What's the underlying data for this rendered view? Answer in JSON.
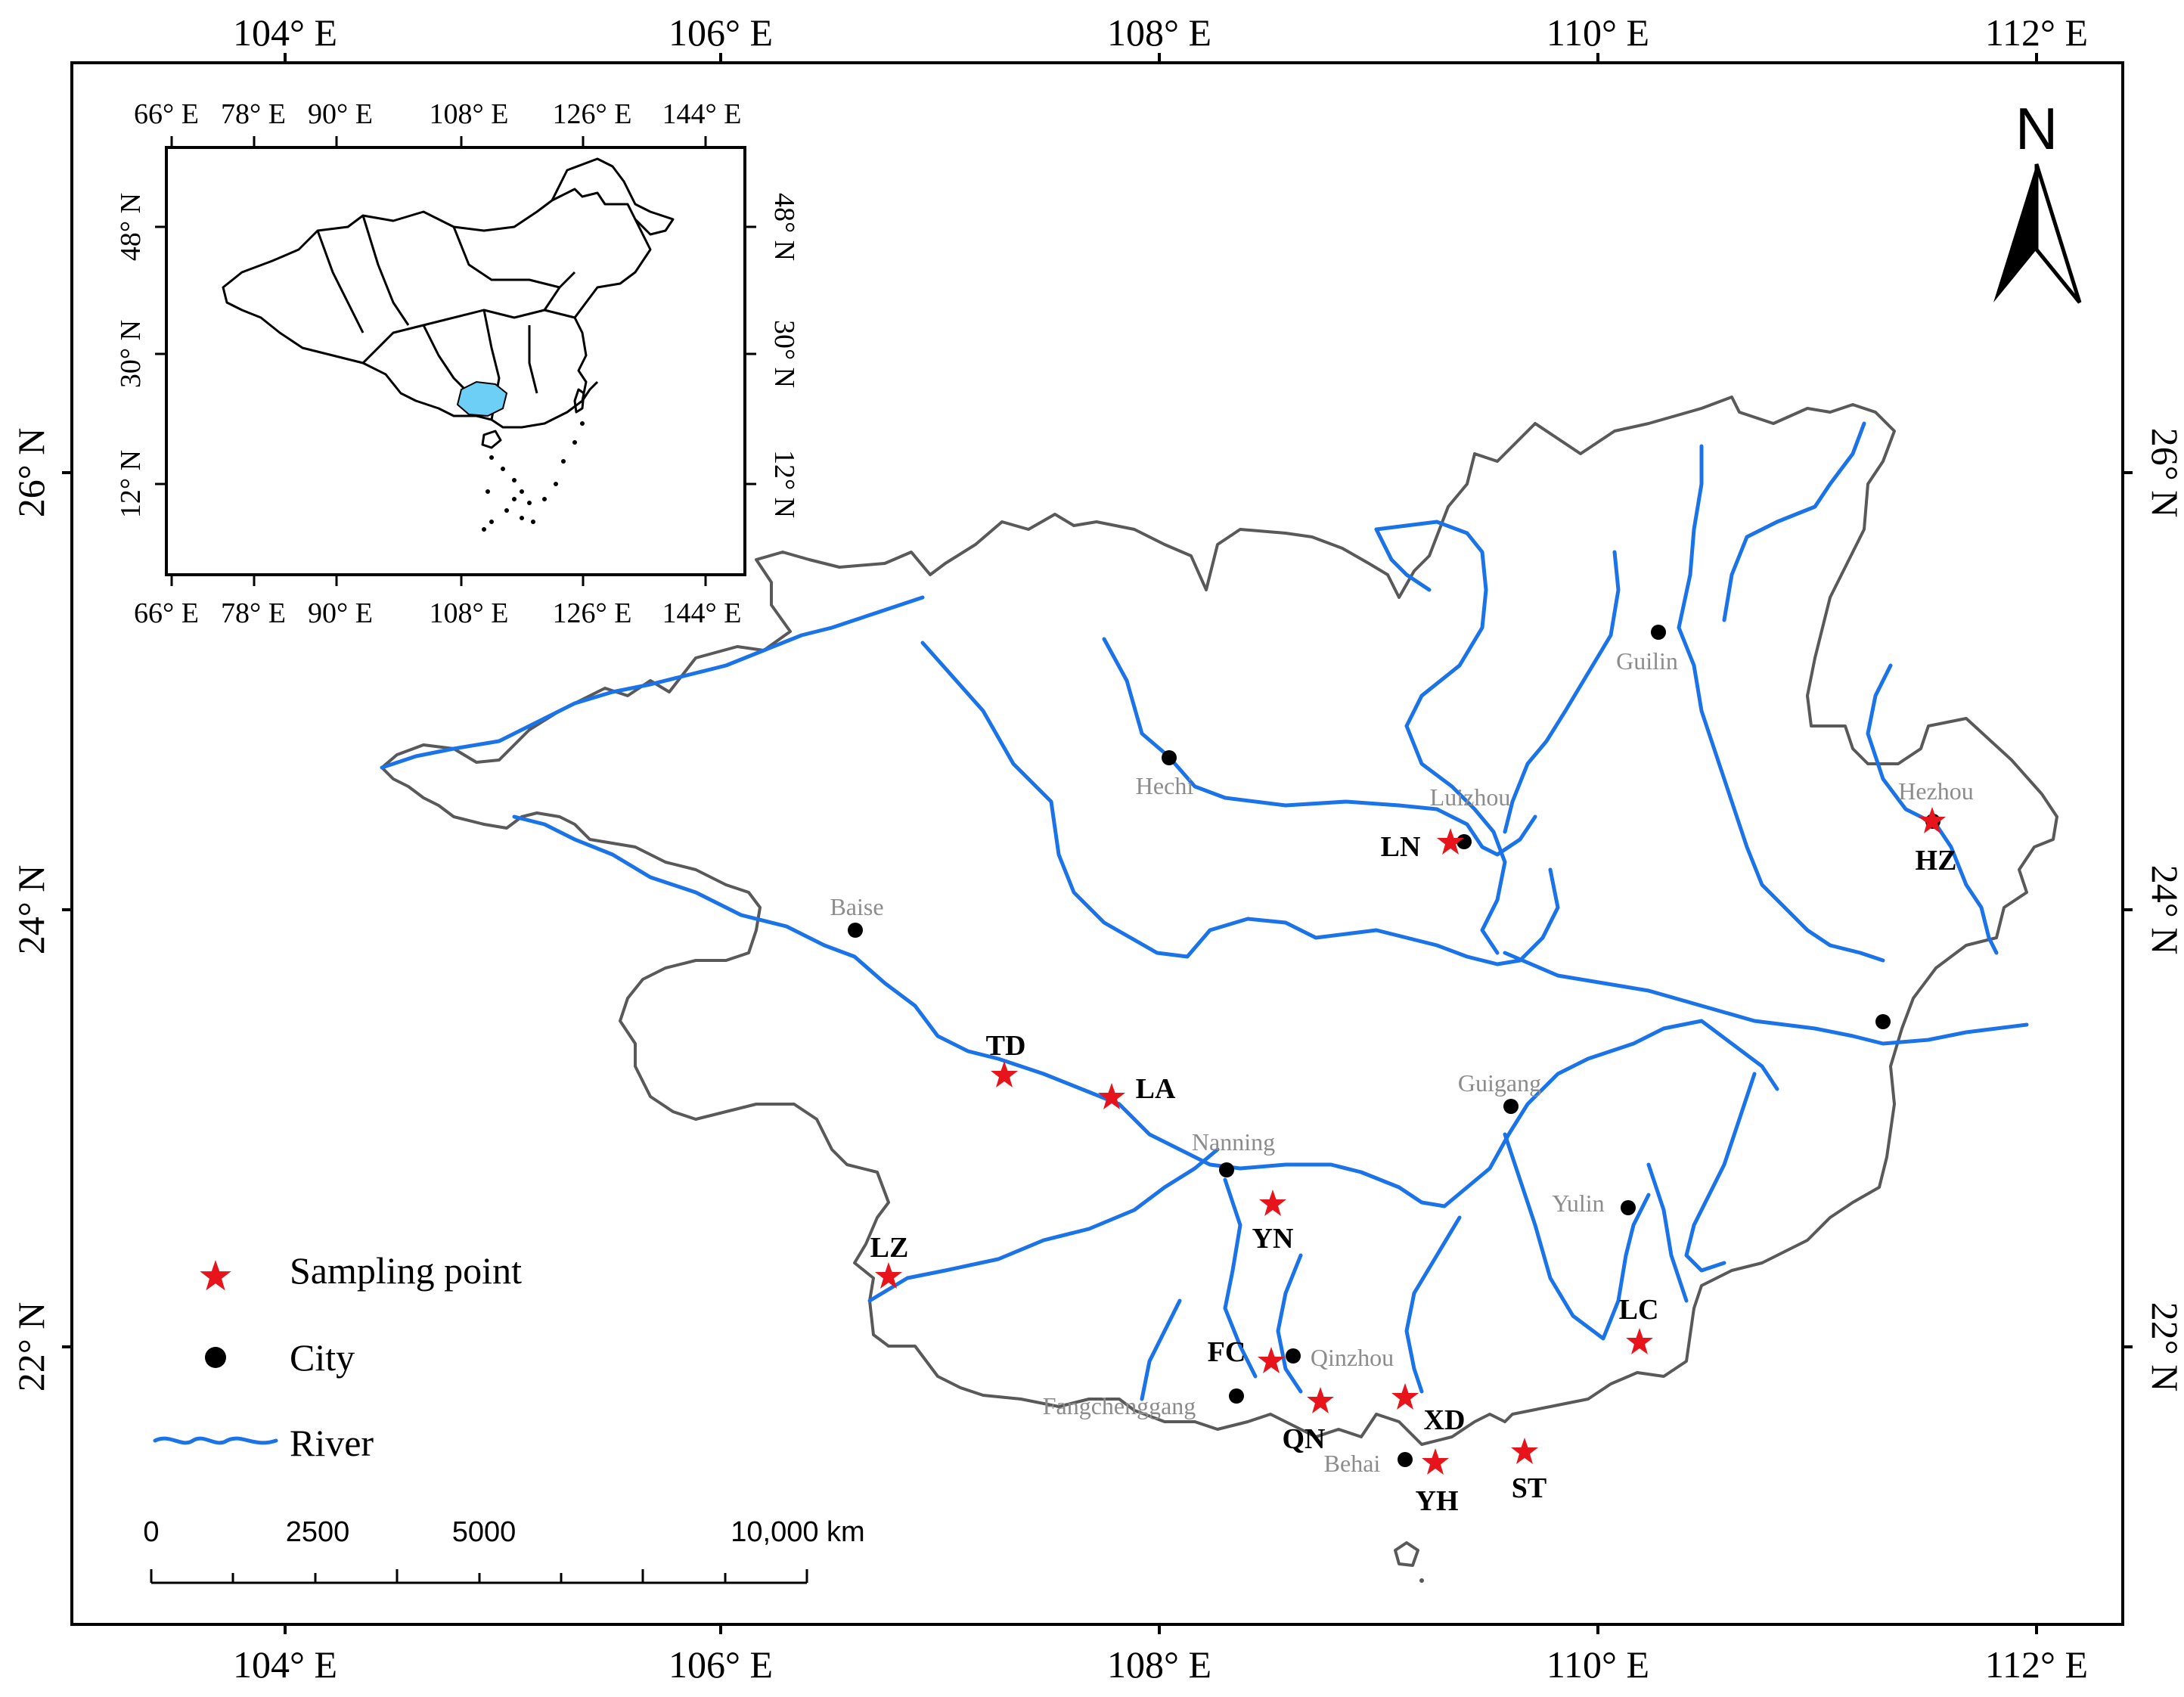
{
  "map": {
    "top_lon_labels": [
      "104° E",
      "106° E",
      "108° E",
      "110° E",
      "112° E"
    ],
    "bottom_lon_labels": [
      "104° E",
      "106° E",
      "108° E",
      "110° E",
      "112° E"
    ],
    "left_lat_labels": [
      "26° N",
      "24° N",
      "22° N"
    ],
    "right_lat_labels": [
      "26° N",
      "24° N",
      "22° N"
    ],
    "inset": {
      "top_lon_labels": [
        "66° E",
        "78° E",
        "90° E",
        "108° E",
        "126° E",
        "144° E"
      ],
      "bottom_lon_labels": [
        "66° E",
        "78° E",
        "90° E",
        "108° E",
        "126° E",
        "144° E"
      ],
      "left_lat_labels": [
        "48° N",
        "30° N",
        "12° N"
      ],
      "right_lat_labels": [
        "48° N",
        "30° N",
        "12° N"
      ],
      "highlight_color": "#6ecff6"
    },
    "north_arrow": {
      "label": "N"
    },
    "cities": [
      {
        "name": "Guilin"
      },
      {
        "name": "Hechi"
      },
      {
        "name": "Luizhou"
      },
      {
        "name": "Hezhou"
      },
      {
        "name": "Baise"
      },
      {
        "name": "Guigang"
      },
      {
        "name": "Nanning"
      },
      {
        "name": "Yulin"
      },
      {
        "name": "Qinzhou"
      },
      {
        "name": "Fangchenggang"
      },
      {
        "name": "Behai"
      },
      {
        "name": ""
      }
    ],
    "sampling_points": [
      {
        "code": "LN"
      },
      {
        "code": "HZ"
      },
      {
        "code": "TD"
      },
      {
        "code": "LA"
      },
      {
        "code": "YN"
      },
      {
        "code": "LZ"
      },
      {
        "code": "FC"
      },
      {
        "code": "QN"
      },
      {
        "code": "XD"
      },
      {
        "code": "LC"
      },
      {
        "code": "YH"
      },
      {
        "code": "ST"
      }
    ],
    "legend": {
      "sampling_point": "Sampling point",
      "city": "City",
      "river": "River"
    },
    "scale_bar": {
      "labels": [
        "0",
        "2500",
        "5000",
        "10,000 km"
      ]
    },
    "colors": {
      "river": "#1a73e8",
      "star": "#e8141c",
      "city_dot": "#000000",
      "boundary": "#595959",
      "city_label": "#8c8c8c"
    }
  }
}
